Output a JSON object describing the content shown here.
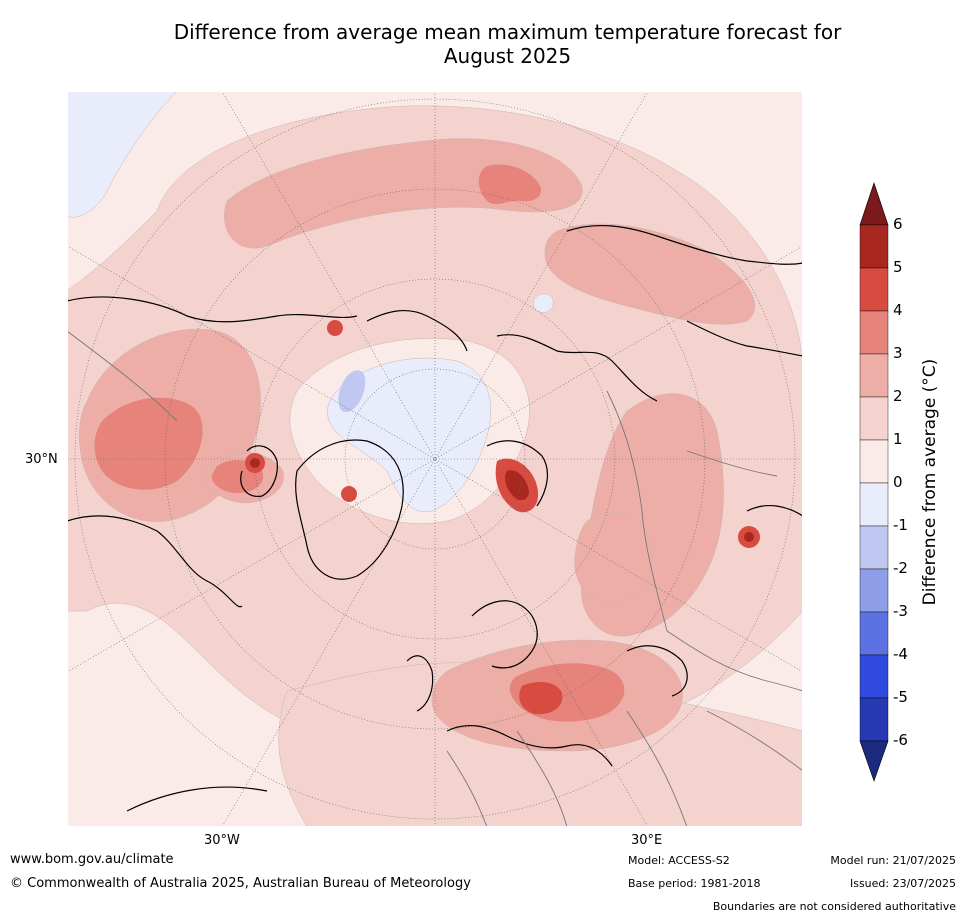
{
  "title_line1": "Difference from average mean maximum temperature forecast for",
  "title_line2": "August 2025",
  "map": {
    "lat_label": "30°N",
    "lon_labels": [
      "30°W",
      "30°E"
    ]
  },
  "colorbar": {
    "label": "Difference from average (°C)",
    "ticks": [
      "6",
      "5",
      "4",
      "3",
      "2",
      "1",
      "0",
      "-1",
      "-2",
      "-3",
      "-4",
      "-5",
      "-6"
    ],
    "colors_warm": [
      "#7b1a1a",
      "#a8281f",
      "#d84b40",
      "#e6837a",
      "#edaea8",
      "#f4d3cf",
      "#fbebe8"
    ],
    "colors_cool": [
      "#e8ecfb",
      "#c0c8f1",
      "#8e9ee9",
      "#5c72e2",
      "#3049de",
      "#2639b2",
      "#1c2a80"
    ]
  },
  "footer": {
    "website": "www.bom.gov.au/climate",
    "copyright": "© Commonwealth of Australia 2025, Australian Bureau of Meteorology",
    "model": "Model: ACCESS-S2",
    "base_period": "Base period: 1981-2018",
    "model_run": "Model run: 21/07/2025",
    "issued": "Issued: 23/07/2025",
    "disclaimer": "Boundaries are not considered authoritative"
  }
}
